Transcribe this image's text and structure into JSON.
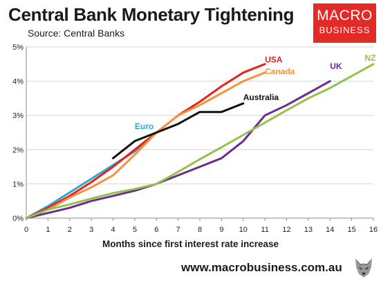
{
  "header": {
    "title": "Central Bank Monetary Tightening",
    "subtitle": "Source: Central Banks"
  },
  "logo": {
    "line1": "MACRO",
    "line2": "BUSINESS"
  },
  "footer": {
    "website": "www.macrobusiness.com.au"
  },
  "chart_data": {
    "type": "line",
    "title": "Central Bank Monetary Tightening",
    "xlabel": "Months since first interest rate increase",
    "ylabel": "",
    "xlim": [
      0,
      16
    ],
    "ylim": [
      0,
      5
    ],
    "x_ticks": [
      "0",
      "1",
      "2",
      "3",
      "4",
      "5",
      "6",
      "7",
      "8",
      "9",
      "10",
      "11",
      "12",
      "13",
      "14",
      "15",
      "16"
    ],
    "y_ticks": [
      "0%",
      "1%",
      "2%",
      "3%",
      "4%",
      "5%"
    ],
    "grid": "horizontal",
    "series": [
      {
        "name": "Euro",
        "color": "#29a9d8",
        "x": [
          0,
          1,
          2,
          3,
          4,
          5,
          6
        ],
        "y": [
          0,
          0.35,
          0.75,
          1.15,
          1.55,
          1.95,
          2.5
        ]
      },
      {
        "name": "USA",
        "color": "#e8211b",
        "x": [
          0,
          1,
          2,
          3,
          4,
          5,
          6,
          7,
          8,
          9,
          10,
          11
        ],
        "y": [
          0,
          0.3,
          0.65,
          1.05,
          1.5,
          2.0,
          2.5,
          3.0,
          3.4,
          3.85,
          4.25,
          4.5
        ]
      },
      {
        "name": "Canada",
        "color": "#f7923a",
        "x": [
          0,
          1,
          2,
          3,
          4,
          5,
          6,
          7,
          8,
          9,
          10,
          11
        ],
        "y": [
          0,
          0.25,
          0.6,
          0.9,
          1.25,
          1.85,
          2.5,
          3.0,
          3.3,
          3.65,
          4.0,
          4.25
        ]
      },
      {
        "name": "Australia",
        "color": "#111111",
        "x": [
          4,
          5,
          6,
          7,
          8,
          9,
          10
        ],
        "y": [
          1.75,
          2.25,
          2.5,
          2.75,
          3.1,
          3.1,
          3.35
        ]
      },
      {
        "name": "UK",
        "color": "#6a2c91",
        "x": [
          0,
          1,
          2,
          3,
          4,
          5,
          6,
          7,
          8,
          9,
          10,
          11,
          12,
          13,
          14
        ],
        "y": [
          0,
          0.15,
          0.3,
          0.5,
          0.65,
          0.8,
          1.0,
          1.25,
          1.5,
          1.75,
          2.25,
          3.0,
          3.3,
          3.65,
          4.0
        ]
      },
      {
        "name": "NZ",
        "color": "#93c14a",
        "x": [
          0,
          1,
          2,
          3,
          4,
          5,
          6,
          7,
          8,
          9,
          10,
          11,
          12,
          13,
          14,
          15,
          16
        ],
        "y": [
          0,
          0.25,
          0.4,
          0.57,
          0.73,
          0.85,
          1.0,
          1.35,
          1.72,
          2.07,
          2.43,
          2.79,
          3.15,
          3.5,
          3.8,
          4.15,
          4.5
        ]
      }
    ],
    "labels": [
      {
        "text": "USA",
        "series": "USA",
        "x": 11,
        "y": 4.55,
        "anchor": "start"
      },
      {
        "text": "Canada",
        "series": "Canada",
        "x": 11,
        "y": 4.2,
        "anchor": "start"
      },
      {
        "text": "Australia",
        "series": "Australia",
        "x": 10,
        "y": 3.45,
        "anchor": "start"
      },
      {
        "text": "Euro",
        "series": "Euro",
        "x": 5,
        "y": 2.6,
        "anchor": "start"
      },
      {
        "text": "UK",
        "series": "UK",
        "x": 14,
        "y": 4.35,
        "anchor": "start"
      },
      {
        "text": "NZ",
        "series": "NZ",
        "x": 15.6,
        "y": 4.6,
        "anchor": "start"
      }
    ]
  }
}
